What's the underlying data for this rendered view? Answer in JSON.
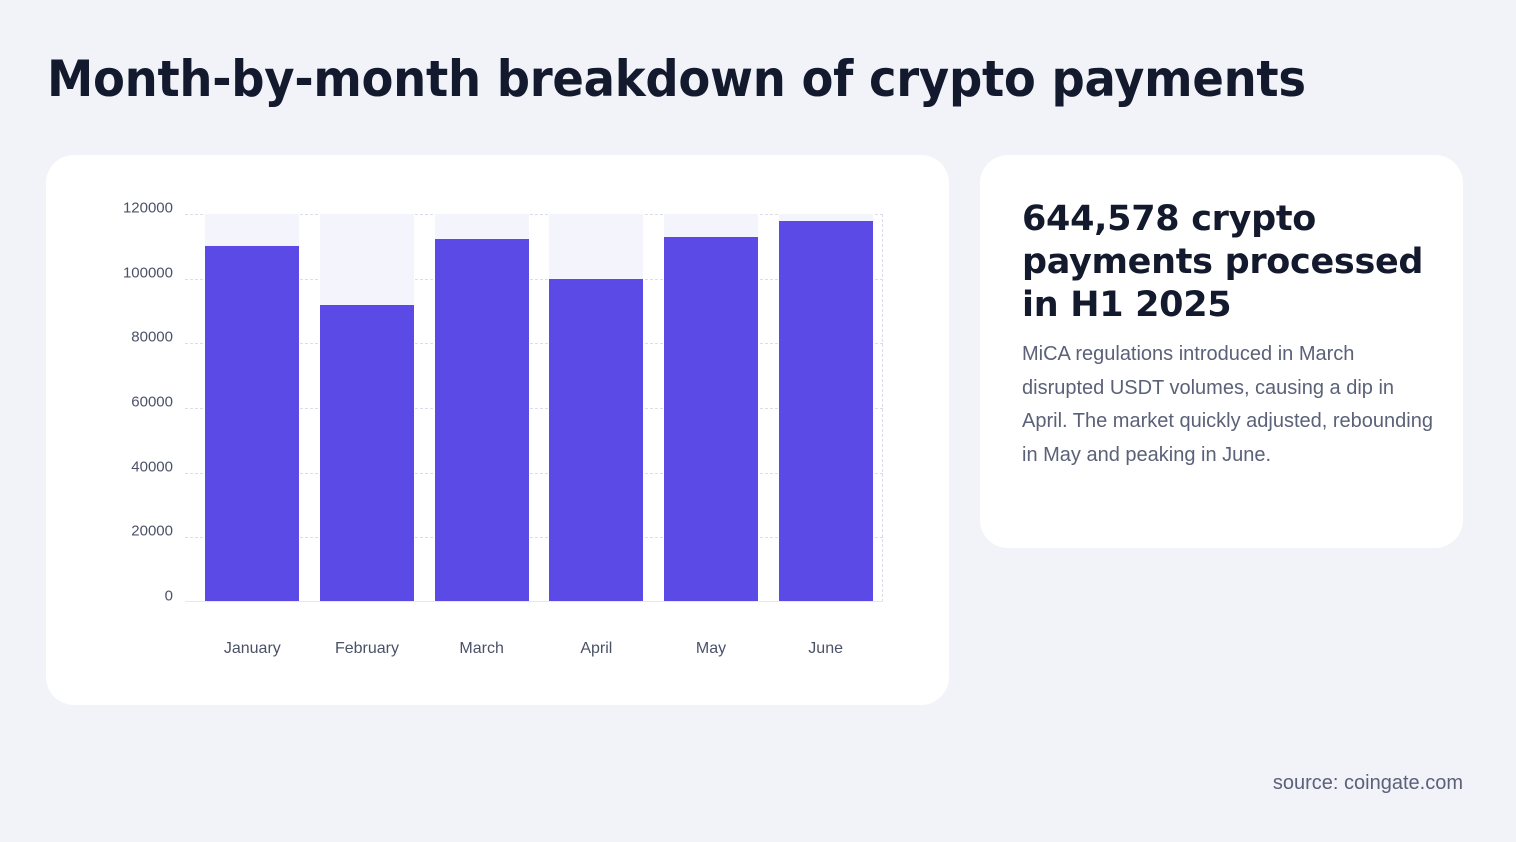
{
  "page": {
    "title": "Month-by-month breakdown of crypto payments",
    "source": "source: coingate.com"
  },
  "info": {
    "headline": "644,578 crypto payments processed in H1 2025",
    "description": "MiCA regulations introduced in March disrupted USDT volumes, causing a dip in April. The market quickly adjusted, rebounding in May and peaking in June."
  },
  "colors": {
    "background": "#f2f3f9",
    "card": "#ffffff",
    "bar": "#5b4ae6",
    "bar_track": "#f4f4fd",
    "text_dark": "#141a2e",
    "text_muted": "#5a6178"
  },
  "chart_data": {
    "type": "bar",
    "title": "Month-by-month breakdown of crypto payments",
    "xlabel": "",
    "ylabel": "",
    "categories": [
      "January",
      "February",
      "March",
      "April",
      "May",
      "June"
    ],
    "values": [
      110200,
      91900,
      112200,
      99800,
      112800,
      117700
    ],
    "ylim": [
      0,
      120000
    ],
    "yticks": [
      "0",
      "20000",
      "40000",
      "60000",
      "80000",
      "100000",
      "120000"
    ],
    "grid": true,
    "legend": null
  }
}
